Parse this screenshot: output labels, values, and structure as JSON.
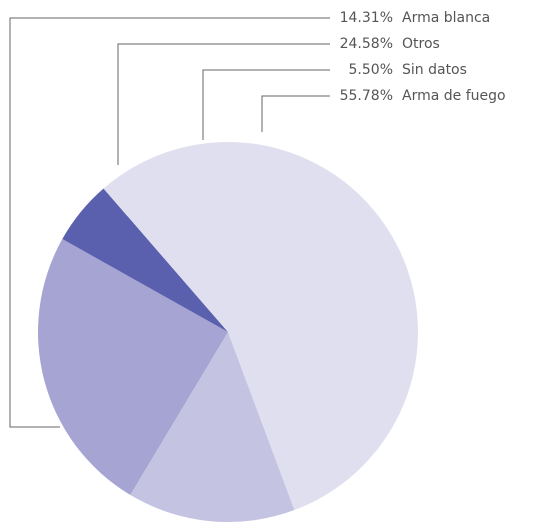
{
  "chart_data": {
    "type": "pie",
    "categories": [
      "Arma blanca",
      "Otros",
      "Sin datos",
      "Arma de fuego"
    ],
    "values": [
      14.31,
      24.58,
      5.5,
      55.78
    ],
    "value_labels": [
      "14.31%",
      "24.58%",
      "5.50%",
      "55.78%"
    ],
    "colors": [
      "#c5c3e2",
      "#a6a4d3",
      "#5a60ad",
      "#e0dff0"
    ]
  }
}
